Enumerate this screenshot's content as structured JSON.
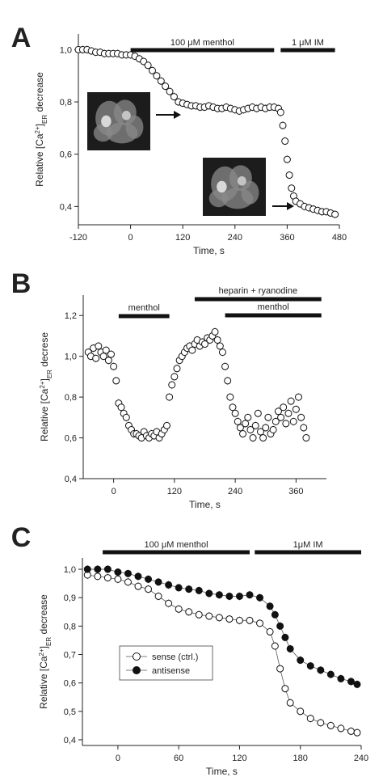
{
  "chart_data": [
    {
      "panel_label": "A",
      "type": "scatter",
      "ylabel": "Relative [Ca2+]ER decrease",
      "xlabel": "Time, s",
      "xlim": [
        -120,
        480
      ],
      "ylim": [
        0.33,
        1.06
      ],
      "xticks": [
        -120,
        0,
        120,
        240,
        360,
        480
      ],
      "yticks": [
        "1,0",
        "0,8",
        "0,6",
        "0,4"
      ],
      "ytick_values": [
        1.0,
        0.8,
        0.6,
        0.4
      ],
      "bars": [
        {
          "label": "100 μM menthol",
          "start": 0,
          "end": 330
        },
        {
          "label": "1 μM IM",
          "start": 345,
          "end": 470
        }
      ],
      "insets": [
        "cell-image-before",
        "cell-image-after"
      ],
      "series": [
        {
          "marker": "open-circle",
          "x": [
            -120,
            -110,
            -100,
            -90,
            -80,
            -70,
            -60,
            -50,
            -40,
            -30,
            -20,
            -10,
            0,
            10,
            20,
            30,
            40,
            50,
            60,
            70,
            80,
            90,
            100,
            110,
            120,
            130,
            140,
            150,
            160,
            170,
            180,
            190,
            200,
            210,
            220,
            230,
            240,
            250,
            260,
            270,
            280,
            290,
            300,
            310,
            320,
            330,
            340,
            345,
            350,
            355,
            360,
            365,
            370,
            375,
            380,
            390,
            400,
            410,
            420,
            430,
            440,
            450,
            460,
            470
          ],
          "y": [
            1.0,
            1.0,
            1.0,
            0.995,
            0.99,
            0.99,
            0.985,
            0.985,
            0.985,
            0.985,
            0.98,
            0.98,
            0.98,
            0.975,
            0.965,
            0.955,
            0.94,
            0.92,
            0.9,
            0.88,
            0.86,
            0.84,
            0.82,
            0.8,
            0.795,
            0.79,
            0.785,
            0.785,
            0.78,
            0.78,
            0.785,
            0.78,
            0.775,
            0.775,
            0.78,
            0.775,
            0.77,
            0.765,
            0.77,
            0.775,
            0.78,
            0.775,
            0.78,
            0.775,
            0.78,
            0.78,
            0.775,
            0.76,
            0.71,
            0.65,
            0.58,
            0.52,
            0.47,
            0.44,
            0.42,
            0.41,
            0.4,
            0.395,
            0.39,
            0.385,
            0.38,
            0.38,
            0.375,
            0.37
          ]
        }
      ]
    },
    {
      "panel_label": "B",
      "type": "scatter",
      "ylabel": "Relative [Ca2+]ER decrese",
      "xlabel": "Time, s",
      "xlim": [
        -60,
        420
      ],
      "ylim": [
        0.4,
        1.3
      ],
      "xticks": [
        0,
        120,
        240,
        360
      ],
      "yticks": [
        "1,2",
        "1,0",
        "0,8",
        "0,6",
        "0,4"
      ],
      "ytick_values": [
        1.2,
        1.0,
        0.8,
        0.6,
        0.4
      ],
      "bars": [
        {
          "label": "menthol",
          "start": 10,
          "end": 110
        },
        {
          "label": "heparin + ryanodine",
          "start": 160,
          "end": 410
        },
        {
          "label": "menthol",
          "start": 220,
          "end": 410
        }
      ],
      "series": [
        {
          "marker": "open-circle",
          "x": [
            -50,
            -45,
            -40,
            -35,
            -30,
            -25,
            -20,
            -15,
            -10,
            -5,
            0,
            5,
            10,
            15,
            20,
            25,
            30,
            35,
            40,
            45,
            50,
            55,
            60,
            65,
            70,
            75,
            80,
            85,
            90,
            95,
            100,
            105,
            110,
            115,
            120,
            125,
            130,
            135,
            140,
            145,
            150,
            155,
            160,
            165,
            170,
            175,
            180,
            185,
            190,
            195,
            200,
            205,
            210,
            215,
            220,
            225,
            230,
            235,
            240,
            245,
            250,
            255,
            260,
            265,
            270,
            275,
            280,
            285,
            290,
            295,
            300,
            305,
            310,
            315,
            320,
            325,
            330,
            335,
            340,
            345,
            350,
            355,
            360,
            365,
            370,
            375,
            380
          ],
          "y": [
            1.02,
            1.0,
            1.04,
            0.99,
            1.05,
            1.02,
            1.0,
            1.03,
            0.98,
            1.01,
            0.95,
            0.88,
            0.77,
            0.75,
            0.72,
            0.7,
            0.66,
            0.64,
            0.62,
            0.62,
            0.61,
            0.6,
            0.63,
            0.61,
            0.6,
            0.62,
            0.61,
            0.63,
            0.6,
            0.62,
            0.64,
            0.66,
            0.8,
            0.86,
            0.9,
            0.94,
            0.98,
            1.0,
            1.02,
            1.04,
            1.05,
            1.03,
            1.06,
            1.08,
            1.05,
            1.07,
            1.06,
            1.09,
            1.08,
            1.1,
            1.12,
            1.08,
            1.05,
            1.02,
            0.95,
            0.88,
            0.8,
            0.75,
            0.72,
            0.68,
            0.65,
            0.62,
            0.67,
            0.7,
            0.64,
            0.6,
            0.66,
            0.72,
            0.63,
            0.6,
            0.65,
            0.7,
            0.62,
            0.64,
            0.68,
            0.73,
            0.7,
            0.75,
            0.67,
            0.72,
            0.78,
            0.68,
            0.74,
            0.8,
            0.7,
            0.65,
            0.6
          ]
        }
      ]
    },
    {
      "panel_label": "C",
      "type": "line",
      "ylabel": "Relative [Ca2+]ER decrease",
      "xlabel": "Time, s",
      "xlim": [
        -35,
        240
      ],
      "ylim": [
        0.38,
        1.04
      ],
      "xticks": [
        0,
        60,
        120,
        180,
        240
      ],
      "yticks": [
        "1,0",
        "0,9",
        "0,8",
        "0,7",
        "0,6",
        "0,5",
        "0,4"
      ],
      "ytick_values": [
        1.0,
        0.9,
        0.8,
        0.7,
        0.6,
        0.5,
        0.4
      ],
      "bars": [
        {
          "label": "100 μM menthol",
          "start": -15,
          "end": 130
        },
        {
          "label": "1μM IM",
          "start": 135,
          "end": 240
        }
      ],
      "legend_position": "lower-left",
      "series": [
        {
          "name": "sense (ctrl.)",
          "marker": "open-circle",
          "x": [
            -30,
            -20,
            -10,
            0,
            10,
            20,
            30,
            40,
            50,
            60,
            70,
            80,
            90,
            100,
            110,
            120,
            130,
            140,
            150,
            155,
            160,
            165,
            170,
            180,
            190,
            200,
            210,
            220,
            230,
            236
          ],
          "y": [
            0.98,
            0.975,
            0.97,
            0.965,
            0.955,
            0.94,
            0.93,
            0.905,
            0.88,
            0.86,
            0.85,
            0.84,
            0.835,
            0.83,
            0.825,
            0.82,
            0.82,
            0.81,
            0.78,
            0.73,
            0.65,
            0.58,
            0.53,
            0.5,
            0.475,
            0.46,
            0.45,
            0.44,
            0.43,
            0.425
          ]
        },
        {
          "name": "antisense",
          "marker": "filled-circle",
          "x": [
            -30,
            -20,
            -10,
            0,
            10,
            20,
            30,
            40,
            50,
            60,
            70,
            80,
            90,
            100,
            110,
            120,
            130,
            140,
            150,
            155,
            160,
            165,
            170,
            180,
            190,
            200,
            210,
            220,
            230,
            236
          ],
          "y": [
            1.0,
            1.0,
            1.0,
            0.99,
            0.985,
            0.975,
            0.965,
            0.955,
            0.945,
            0.935,
            0.93,
            0.925,
            0.915,
            0.91,
            0.905,
            0.905,
            0.91,
            0.9,
            0.87,
            0.84,
            0.8,
            0.76,
            0.72,
            0.68,
            0.66,
            0.645,
            0.63,
            0.615,
            0.605,
            0.595
          ]
        }
      ]
    }
  ]
}
